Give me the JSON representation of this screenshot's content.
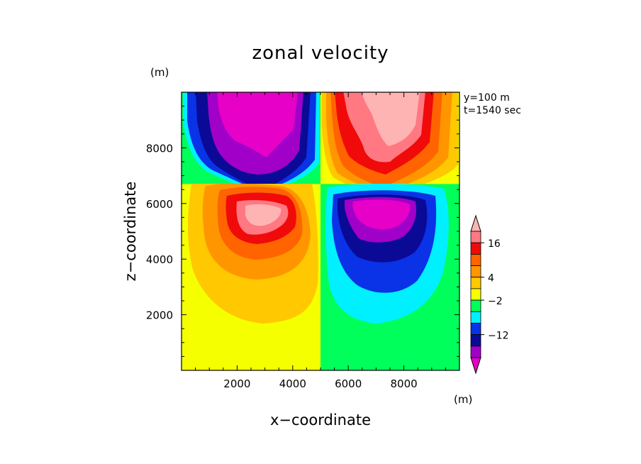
{
  "chart_data": {
    "type": "contour",
    "title": "zonal velocity",
    "xlabel": "x−coordinate",
    "ylabel": "z−coordinate",
    "x_unit": "(m)",
    "y_unit": "(m)",
    "xlim": [
      0,
      10000
    ],
    "ylim": [
      0,
      10000
    ],
    "x_ticks": [
      2000,
      4000,
      6000,
      8000
    ],
    "y_ticks": [
      2000,
      4000,
      6000,
      8000
    ],
    "x_tick_labels": [
      "2000",
      "4000",
      "6000",
      "8000"
    ],
    "y_tick_labels": [
      "2000",
      "4000",
      "6000",
      "8000"
    ],
    "annotations": [
      "y=100 m",
      "t=1540 sec"
    ],
    "colorbar": {
      "unit": "(m)",
      "colors": [
        "#e600c8",
        "#a000c8",
        "#0a0a96",
        "#0a32e6",
        "#00f0ff",
        "#00ff5a",
        "#f5ff00",
        "#ffc800",
        "#ff9600",
        "#ff6400",
        "#f00a0a",
        "#ff7882",
        "#ffb4b4"
      ],
      "labels": [
        {
          "text": "−12",
          "value": -12
        },
        {
          "text": "−2",
          "value": -2
        },
        {
          "text": "4",
          "value": 4
        },
        {
          "text": "16",
          "value": 16
        }
      ]
    },
    "structure": {
      "upper_layer_boundary_z": 6700,
      "vertical_split_x": 5000,
      "features": [
        {
          "region": "upper-left",
          "sign": "negative",
          "center": [
            3000,
            8500
          ]
        },
        {
          "region": "upper-right",
          "sign": "positive",
          "center": [
            7000,
            8500
          ]
        },
        {
          "region": "lower-left",
          "sign": "positive",
          "center": [
            3000,
            5500
          ]
        },
        {
          "region": "lower-right",
          "sign": "negative",
          "center": [
            7000,
            5400
          ]
        }
      ]
    }
  }
}
